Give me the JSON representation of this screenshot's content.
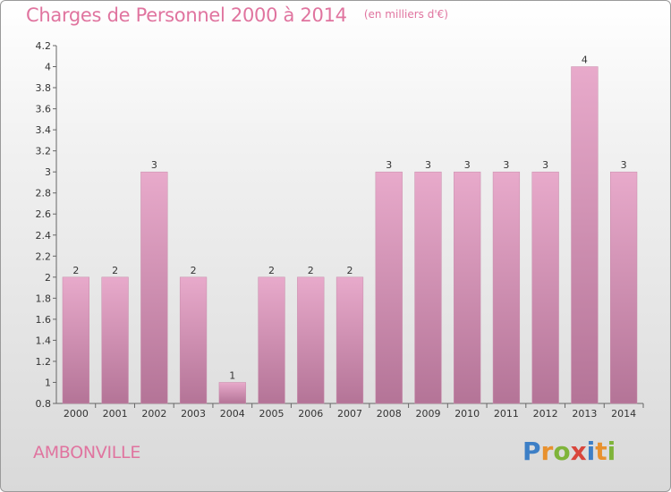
{
  "header": {
    "title": "Charges de Personnel 2000 à 2014",
    "unit": "(en milliers d'€)"
  },
  "footer": {
    "place": "AMBONVILLE",
    "logo_text": "Proxiti"
  },
  "colors": {
    "bar_top": "#e8aacb",
    "bar_bottom": "#b47497",
    "text_accent": "#e0749f"
  },
  "chart_data": {
    "type": "bar",
    "title": "Charges de Personnel 2000 à 2014",
    "subtitle": "(en milliers d'€)",
    "categories": [
      "2000",
      "2001",
      "2002",
      "2003",
      "2004",
      "2005",
      "2006",
      "2007",
      "2008",
      "2009",
      "2010",
      "2011",
      "2012",
      "2013",
      "2014"
    ],
    "values": [
      2,
      2,
      3,
      2,
      1,
      2,
      2,
      2,
      3,
      3,
      3,
      3,
      3,
      4,
      3
    ],
    "data_labels": [
      "2",
      "2",
      "3",
      "2",
      "1",
      "2",
      "2",
      "2",
      "3",
      "3",
      "3",
      "3",
      "3",
      "4",
      "3"
    ],
    "ylim": [
      0.8,
      4.2
    ],
    "yticks": [
      0.8,
      1,
      1.2,
      1.4,
      1.6,
      1.8,
      2,
      2.2,
      2.4,
      2.6,
      2.8,
      3,
      3.2,
      3.4,
      3.6,
      3.8,
      4,
      4.2
    ],
    "ytick_labels": [
      "0.8",
      "1",
      "1.2",
      "1.4",
      "1.6",
      "1.8",
      "2",
      "2.2",
      "2.4",
      "2.6",
      "2.8",
      "3",
      "3.2",
      "3.4",
      "3.6",
      "3.8",
      "4",
      "4.2"
    ],
    "grid": false,
    "legend": "none"
  }
}
